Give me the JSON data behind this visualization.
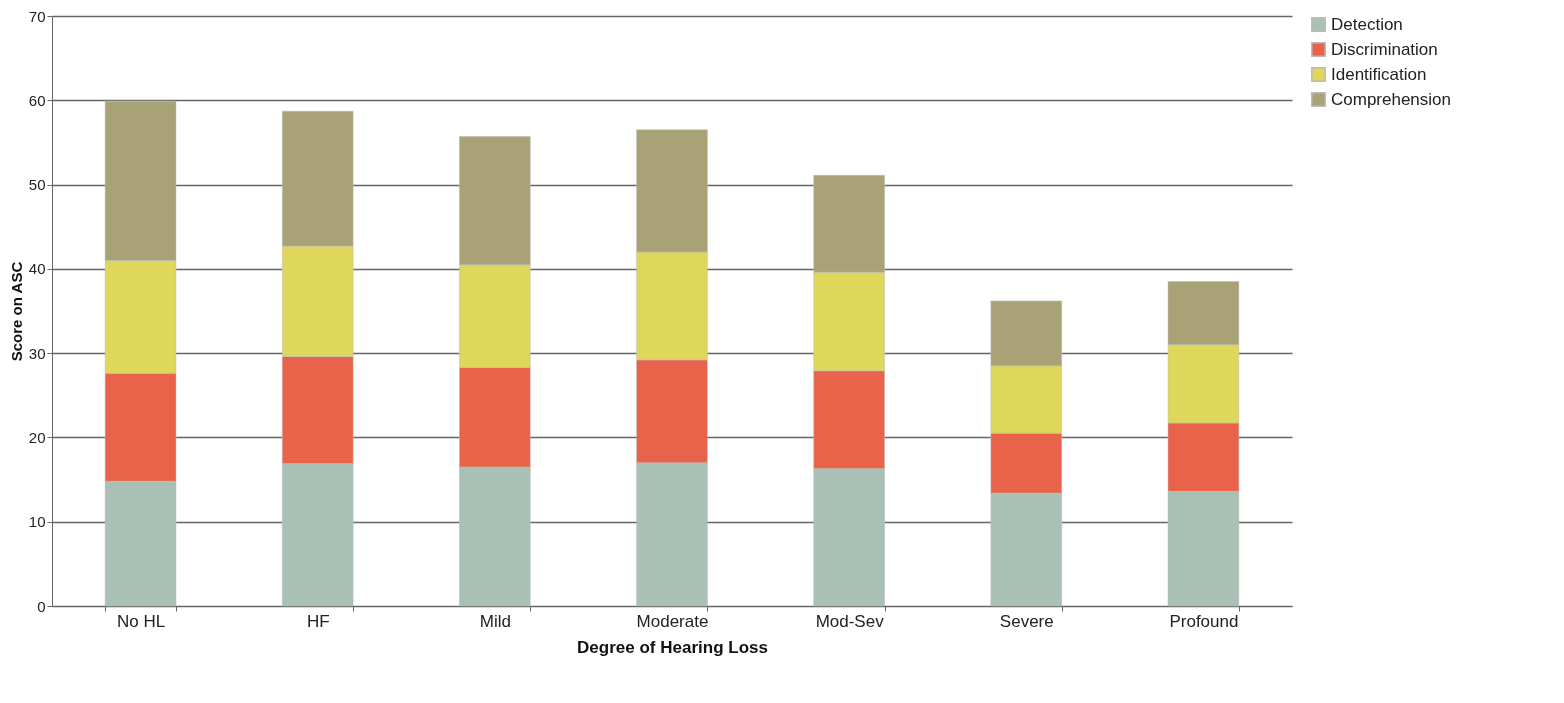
{
  "chart_data": {
    "type": "bar",
    "xlabel": "Degree of Hearing Loss",
    "ylabel": "Score on ASC",
    "categories": [
      "No HL",
      "HF",
      "Mild",
      "Moderate",
      "Mod-Sev",
      "Severe",
      "Profound"
    ],
    "stacked": true,
    "ylim": [
      0,
      70
    ],
    "yticks": [
      0,
      10,
      20,
      30,
      40,
      50,
      60,
      70
    ],
    "grid": "y",
    "legend": "right",
    "series": [
      {
        "name": "Detection",
        "color": "#a9c1b4",
        "values": [
          14.8,
          16.9,
          16.5,
          17.0,
          16.3,
          13.4,
          13.6
        ]
      },
      {
        "name": "Discrimination",
        "color": "#e9634b",
        "values": [
          12.8,
          12.7,
          11.8,
          12.2,
          11.6,
          7.1,
          8.1
        ]
      },
      {
        "name": "Identification",
        "color": "#dfd65c",
        "values": [
          13.4,
          13.1,
          12.2,
          12.8,
          11.7,
          8.0,
          9.3
        ]
      },
      {
        "name": "Comprehension",
        "color": "#a9a277",
        "values": [
          18.9,
          16.0,
          15.2,
          14.5,
          11.5,
          7.7,
          7.5
        ]
      }
    ]
  }
}
